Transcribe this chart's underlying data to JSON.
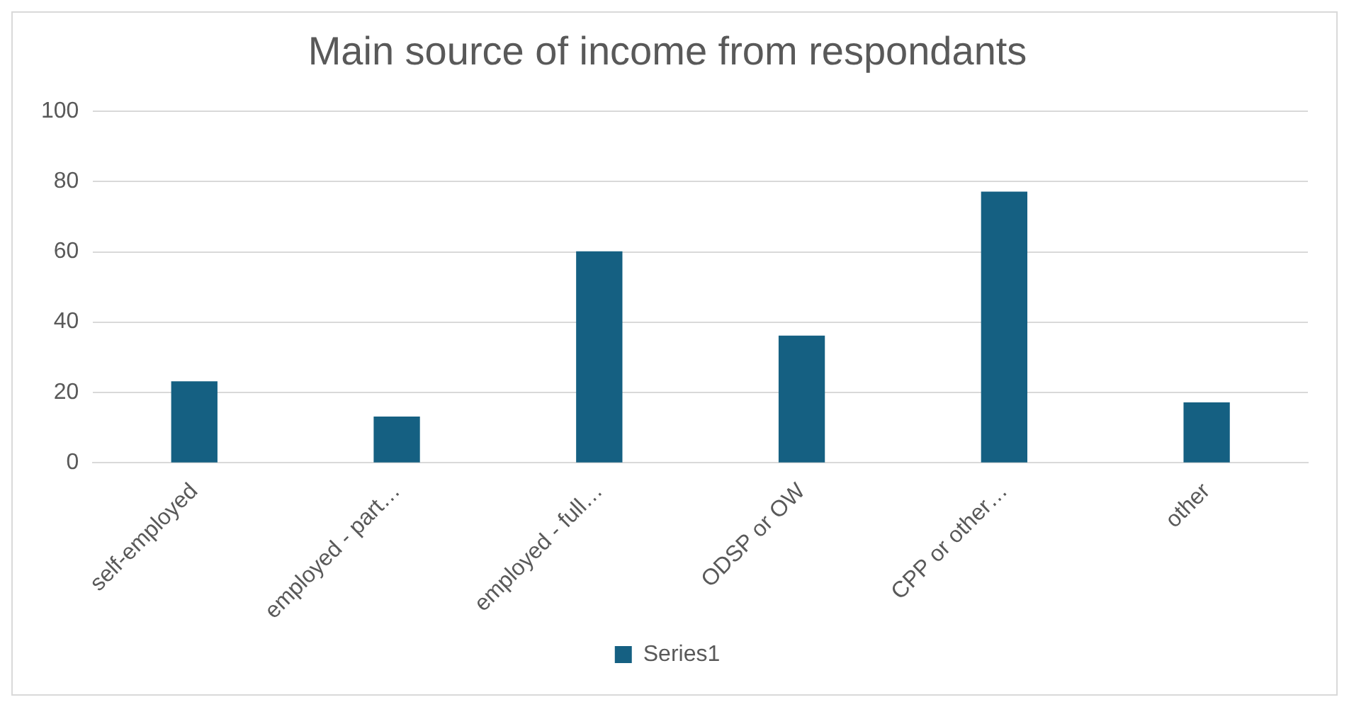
{
  "chart_data": {
    "type": "bar",
    "title": "Main source of income from respondants",
    "categories": [
      "self-employed",
      "employed - part…",
      "employed - full…",
      "ODSP or OW",
      "CPP or other…",
      "other"
    ],
    "series": [
      {
        "name": "Series1",
        "color": "#156082",
        "values": [
          23,
          13,
          60,
          36,
          77,
          17
        ]
      }
    ],
    "ylim": [
      0,
      100
    ],
    "yticks": [
      0,
      20,
      40,
      60,
      80,
      100
    ],
    "grid": "y",
    "legend": "bottom"
  }
}
